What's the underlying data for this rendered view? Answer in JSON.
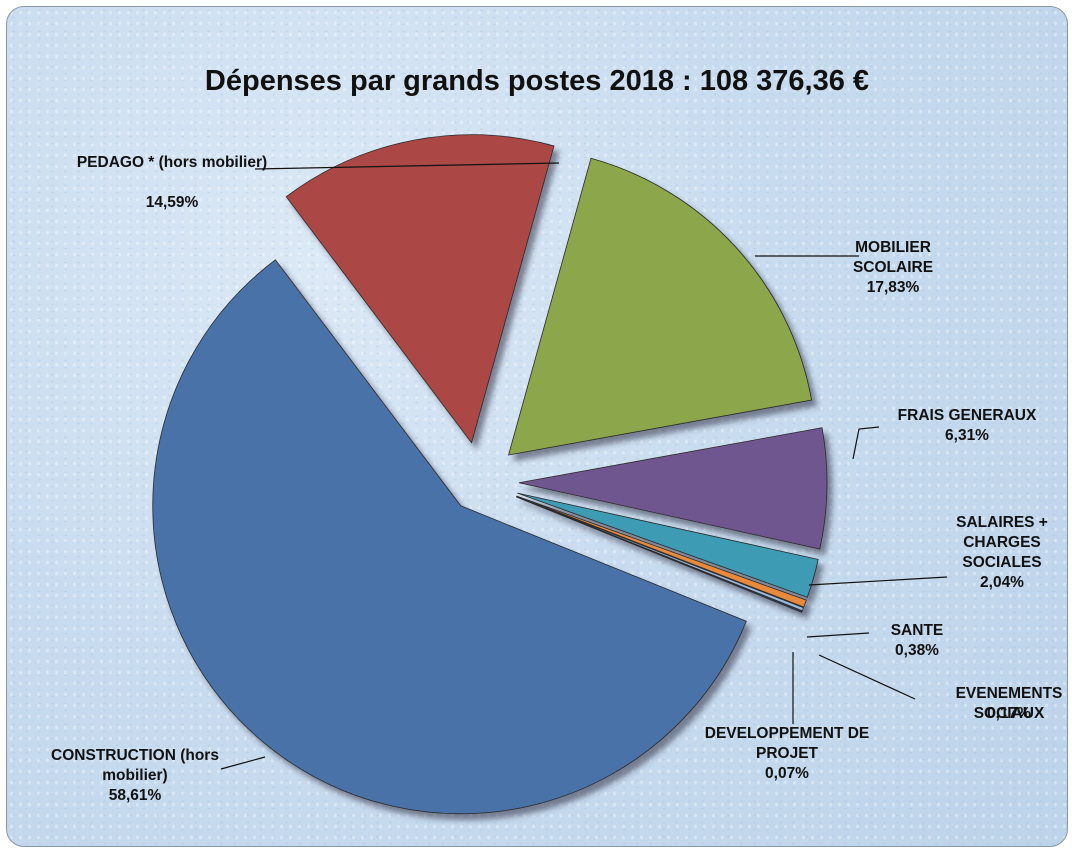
{
  "chart_data": {
    "type": "pie",
    "title": "Dépenses par grands postes 2018 : 108 376,36 €",
    "categories": [
      "PEDAGO * (hors mobilier)",
      "MOBILIER SCOLAIRE",
      "FRAIS GENERAUX",
      "SALAIRES + CHARGES SOCIALES",
      "SANTE",
      "EVENEMENTS SOCIAUX",
      "DEVELOPPEMENT DE PROJET",
      "CONSTRUCTION (hors mobilier)"
    ],
    "values": [
      14.59,
      17.83,
      6.31,
      2.04,
      0.38,
      0.17,
      0.07,
      58.61
    ],
    "value_labels": [
      "14,59%",
      "17,83%",
      "6,31%",
      "2,04%",
      "0,38%",
      "0,17%",
      "0,07%",
      "58,61%"
    ],
    "colors": [
      "#ab4744",
      "#8ba64b",
      "#70578f",
      "#3e9cb3",
      "#e8893a",
      "#9bb8dc",
      "#2f4d7a",
      "#4a72a8"
    ]
  }
}
